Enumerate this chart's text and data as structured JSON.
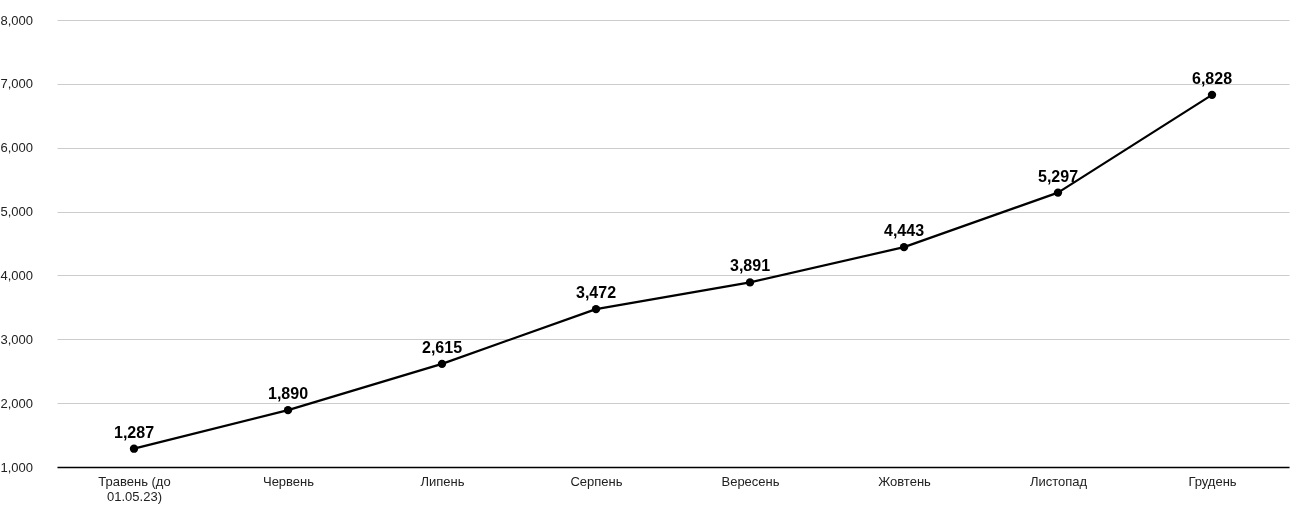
{
  "chart_data": {
    "type": "line",
    "categories": [
      "Травень (до 01.05.23)",
      "Червень",
      "Липень",
      "Серпень",
      "Вересень",
      "Жовтень",
      "Листопад",
      "Грудень"
    ],
    "values": [
      1287,
      1890,
      2615,
      3472,
      3891,
      4443,
      5297,
      6828
    ],
    "value_labels": [
      "1,287",
      "1,890",
      "2,615",
      "3,472",
      "3,891",
      "4,443",
      "5,297",
      "6,828"
    ],
    "color": "#000000",
    "ylim": [
      1000,
      8000
    ],
    "yticks": [
      {
        "value": 1000,
        "label": "1,000"
      },
      {
        "value": 2000,
        "label": "2,000"
      },
      {
        "value": 3000,
        "label": "3,000"
      },
      {
        "value": 4000,
        "label": "4,000"
      },
      {
        "value": 5000,
        "label": "5,000"
      },
      {
        "value": 6000,
        "label": "6,000"
      },
      {
        "value": 7000,
        "label": "7,000"
      },
      {
        "value": 8000,
        "label": "8,000"
      }
    ],
    "grid": "y",
    "marker": "circle",
    "line_style": "solid"
  }
}
